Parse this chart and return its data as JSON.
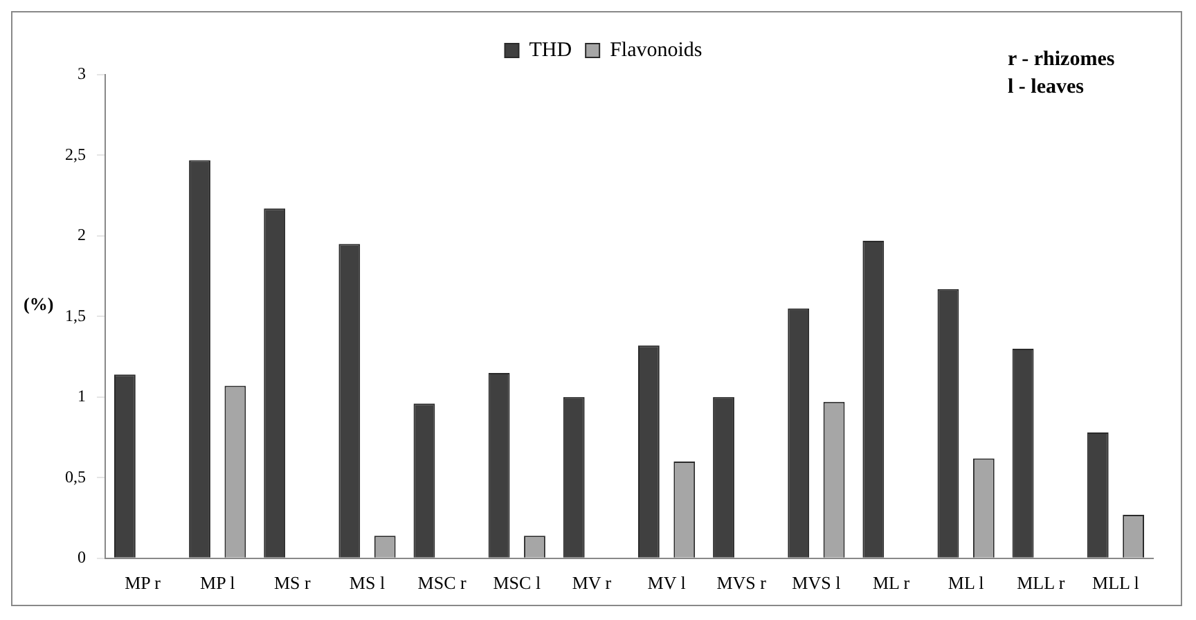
{
  "chart_data": {
    "type": "bar",
    "ylabel": "(%)",
    "categories": [
      "MP r",
      "MP l",
      "MS r",
      "MS l",
      "MSC r",
      "MSC l",
      "MV r",
      "MV l",
      "MVS r",
      "MVS l",
      "ML r",
      "ML l",
      "MLL r",
      "MLL l"
    ],
    "series": [
      {
        "name": "THD",
        "color": "#404040",
        "values": [
          1.14,
          2.47,
          2.17,
          1.95,
          0.96,
          1.15,
          1.0,
          1.32,
          1.0,
          1.55,
          1.97,
          1.67,
          1.3,
          0.78
        ]
      },
      {
        "name": "Flavonoids",
        "color": "#a6a6a6",
        "values": [
          null,
          1.07,
          null,
          0.14,
          null,
          0.14,
          null,
          0.6,
          null,
          0.97,
          null,
          0.62,
          null,
          0.27
        ]
      }
    ],
    "ylim": [
      0,
      3
    ],
    "yticks": [
      0,
      {
        "value": 0.5,
        "label": "0,5"
      },
      1,
      {
        "value": 1.5,
        "label": "1,5"
      },
      2,
      {
        "value": 2.5,
        "label": "2,5"
      },
      3
    ],
    "grid": false,
    "legend": "top",
    "annotations": [
      "r - rhizomes",
      "l - leaves"
    ]
  }
}
